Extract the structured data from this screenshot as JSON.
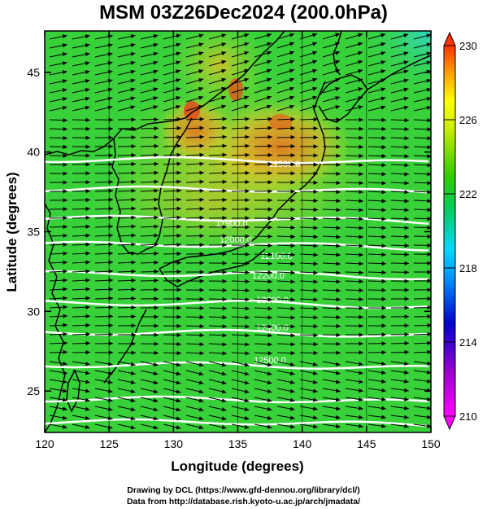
{
  "title": "MSM 03Z26Dec2024 (200.0hPa)",
  "x_axis": {
    "label": "Longitude (degrees)",
    "ticks": [
      "120",
      "125",
      "130",
      "135",
      "140",
      "145",
      "150"
    ],
    "range": [
      120,
      150
    ]
  },
  "y_axis": {
    "label": "Latitude  (degrees)",
    "ticks": [
      "25",
      "30",
      "35",
      "40",
      "45"
    ],
    "range": [
      22.4,
      47.6
    ]
  },
  "colorbar": {
    "ticks": [
      "210",
      "214",
      "218",
      "222",
      "226",
      "230"
    ],
    "range": [
      210,
      230
    ],
    "colors": [
      "#ff00ff",
      "#0000cc",
      "#00d8ff",
      "#00cc33",
      "#ffff00",
      "#ff3300"
    ]
  },
  "contours": {
    "labels": [
      "11800.0",
      "11900.0",
      "12000.0",
      "12100.0",
      "12200.0",
      "12300.0",
      "12400.0",
      "12500.0"
    ],
    "color": "#ffffff"
  },
  "credits": {
    "line1": "Drawing by DCL (https://www.gfd-dennou.org/library/dcl/)",
    "line2": "Data from http://database.rish.kyoto-u.ac.jp/arch/jmadata/"
  },
  "map_colors": {
    "base_green": "#38d13a",
    "yellow": "#cfe02a",
    "orange": "#e8a92a",
    "red": "#e04a1c",
    "cyan": "#3fd6b0",
    "coast": "#000000",
    "arrow": "#000000"
  }
}
